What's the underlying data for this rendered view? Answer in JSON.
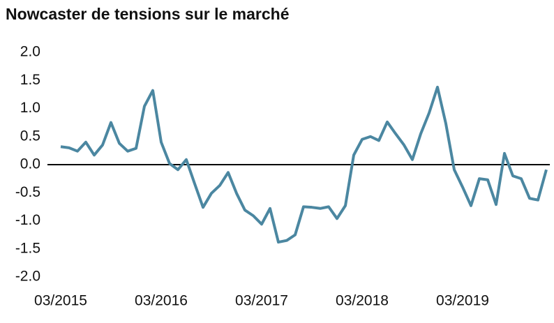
{
  "chart_data": {
    "type": "line",
    "title": "Nowcaster de tensions sur le marché",
    "categories": [
      "03/2015",
      null,
      null,
      null,
      null,
      null,
      null,
      null,
      null,
      null,
      null,
      null,
      "03/2016",
      null,
      null,
      null,
      null,
      null,
      null,
      null,
      null,
      null,
      null,
      null,
      "03/2017",
      null,
      null,
      null,
      null,
      null,
      null,
      null,
      null,
      null,
      null,
      null,
      "03/2018",
      null,
      null,
      null,
      null,
      null,
      null,
      null,
      null,
      null,
      null,
      null,
      "03/2019",
      null,
      null,
      null,
      null,
      null,
      null,
      null,
      null,
      null,
      null
    ],
    "series": [
      {
        "color": "#4b87a1",
        "values": [
          0.32,
          0.3,
          0.24,
          0.4,
          0.17,
          0.35,
          0.75,
          0.38,
          0.24,
          0.29,
          1.04,
          1.32,
          0.4,
          0.02,
          -0.09,
          0.09,
          -0.34,
          -0.76,
          -0.51,
          -0.37,
          -0.14,
          -0.51,
          -0.81,
          -0.91,
          -1.06,
          -0.78,
          -1.38,
          -1.35,
          -1.25,
          -0.75,
          -0.76,
          -0.78,
          -0.75,
          -0.96,
          -0.73,
          0.17,
          0.45,
          0.5,
          0.43,
          0.76,
          0.55,
          0.35,
          0.09,
          0.55,
          0.92,
          1.38,
          0.73,
          -0.09,
          -0.4,
          -0.73,
          -0.25,
          -0.27,
          -0.71,
          0.2,
          -0.2,
          -0.25,
          -0.6,
          -0.63,
          -0.09
        ]
      }
    ],
    "ylim": [
      -2,
      2
    ],
    "yticks": [
      {
        "value": 2,
        "label": "2.0"
      },
      1.5,
      {
        "value": 1,
        "label": "1.0"
      },
      0.5,
      {
        "value": 0,
        "label": "0.0"
      },
      -0.5,
      {
        "value": -1,
        "label": "-1.0"
      },
      -1.5,
      {
        "value": -2,
        "label": "-2.0"
      }
    ],
    "zero_line": true,
    "grid": false
  }
}
